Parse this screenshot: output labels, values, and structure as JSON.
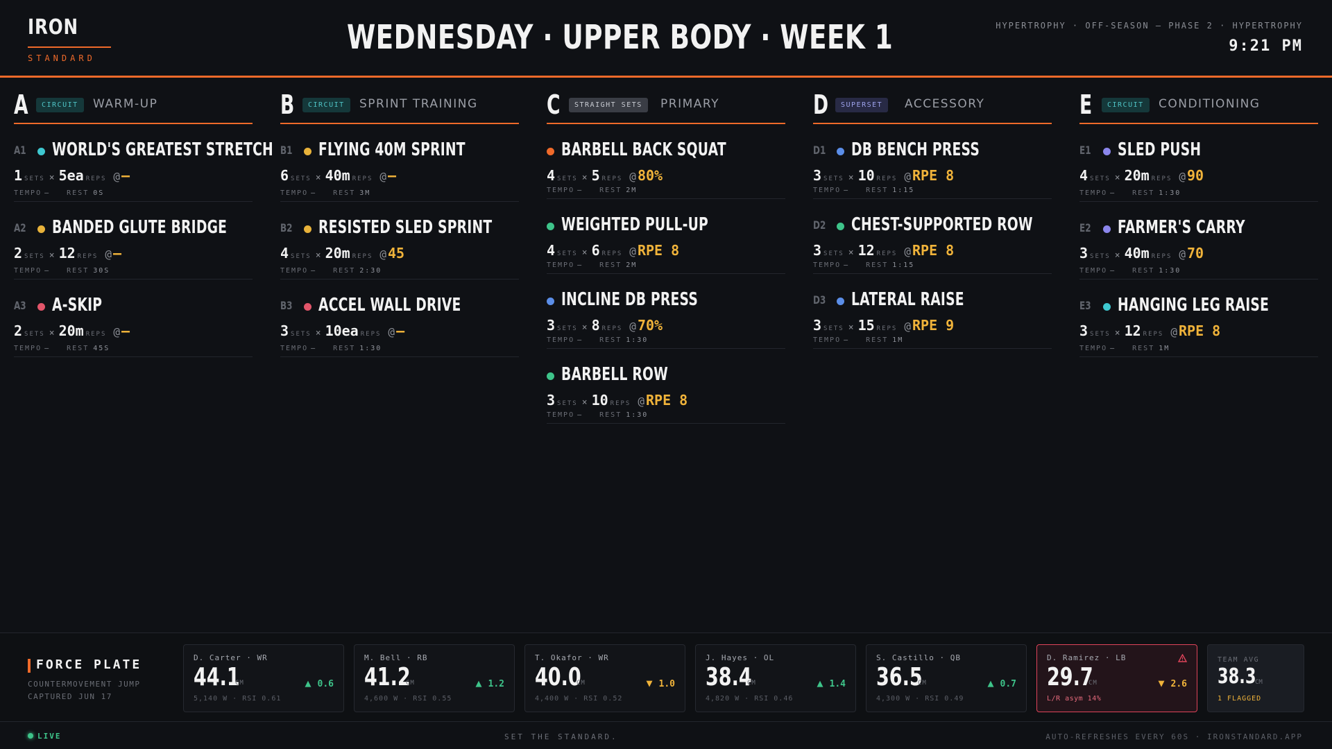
{
  "header": {
    "logo_main": "IRON",
    "logo_sub": "STANDARD",
    "title": "WEDNESDAY · UPPER BODY · WEEK 1",
    "meta": "HYPERTROPHY · OFF-SEASON — PHASE 2 · HYPERTROPHY",
    "time": "9:21 PM"
  },
  "labels": {
    "sets": "SETS",
    "reps": "REPS",
    "times": "×",
    "at": "@",
    "tempo": "TEMPO",
    "rest": "REST"
  },
  "colors": {
    "accent": "#ef6a2a",
    "load": "#f0b33a",
    "up": "#3ec48a",
    "flag": "#e0445a"
  },
  "blocks": [
    {
      "letter": "A",
      "badge": "CIRCUIT",
      "title": "WARM-UP",
      "exercises": [
        {
          "code": "A1",
          "dot": "#3ec8d0",
          "name": "WORLD'S GREATEST STRETCH",
          "sets": "1",
          "reps": "5ea",
          "load": "—",
          "tempo": "—",
          "rest": "0S"
        },
        {
          "code": "A2",
          "dot": "#e8b23a",
          "name": "BANDED GLUTE BRIDGE",
          "sets": "2",
          "reps": "12",
          "load": "—",
          "tempo": "—",
          "rest": "30S"
        },
        {
          "code": "A3",
          "dot": "#e2556a",
          "name": "A-SKIP",
          "sets": "2",
          "reps": "20m",
          "load": "—",
          "tempo": "—",
          "rest": "45S"
        }
      ]
    },
    {
      "letter": "B",
      "badge": "CIRCUIT",
      "title": "SPRINT TRAINING",
      "exercises": [
        {
          "code": "B1",
          "dot": "#e8b23a",
          "name": "FLYING 40M SPRINT",
          "sets": "6",
          "reps": "40m",
          "load": "—",
          "tempo": "—",
          "rest": "3M"
        },
        {
          "code": "B2",
          "dot": "#e8b23a",
          "name": "RESISTED SLED SPRINT",
          "sets": "4",
          "reps": "20m",
          "load": "45",
          "tempo": "—",
          "rest": "2:30"
        },
        {
          "code": "B3",
          "dot": "#e2556a",
          "name": "ACCEL WALL DRIVE",
          "sets": "3",
          "reps": "10ea",
          "load": "—",
          "tempo": "—",
          "rest": "1:30"
        }
      ]
    },
    {
      "letter": "C",
      "badge": "STRAIGHT SETS",
      "title": "PRIMARY",
      "exercises": [
        {
          "code": "",
          "dot": "#ef6a2a",
          "name": "BARBELL BACK SQUAT",
          "sets": "4",
          "reps": "5",
          "load": "80%",
          "tempo": "—",
          "rest": "2M"
        },
        {
          "code": "",
          "dot": "#3ec48a",
          "name": "WEIGHTED PULL-UP",
          "sets": "4",
          "reps": "6",
          "load": "RPE 8",
          "tempo": "—",
          "rest": "2M"
        },
        {
          "code": "",
          "dot": "#5b8ee8",
          "name": "INCLINE DB PRESS",
          "sets": "3",
          "reps": "8",
          "load": "70%",
          "tempo": "—",
          "rest": "1:30"
        },
        {
          "code": "",
          "dot": "#3ec48a",
          "name": "BARBELL ROW",
          "sets": "3",
          "reps": "10",
          "load": "RPE 8",
          "tempo": "—",
          "rest": "1:30"
        }
      ]
    },
    {
      "letter": "D",
      "badge": "SUPERSET",
      "title": "ACCESSORY",
      "exercises": [
        {
          "code": "D1",
          "dot": "#5b8ee8",
          "name": "DB BENCH PRESS",
          "sets": "3",
          "reps": "10",
          "load": "RPE 8",
          "tempo": "—",
          "rest": "1:15"
        },
        {
          "code": "D2",
          "dot": "#3ec48a",
          "name": "CHEST-SUPPORTED ROW",
          "sets": "3",
          "reps": "12",
          "load": "RPE 8",
          "tempo": "—",
          "rest": "1:15"
        },
        {
          "code": "D3",
          "dot": "#5b8ee8",
          "name": "LATERAL RAISE",
          "sets": "3",
          "reps": "15",
          "load": "RPE 9",
          "tempo": "—",
          "rest": "1M"
        }
      ]
    },
    {
      "letter": "E",
      "badge": "CIRCUIT",
      "title": "CONDITIONING",
      "exercises": [
        {
          "code": "E1",
          "dot": "#8b86ec",
          "name": "SLED PUSH",
          "sets": "4",
          "reps": "20m",
          "load": "90",
          "tempo": "—",
          "rest": "1:30"
        },
        {
          "code": "E2",
          "dot": "#8b86ec",
          "name": "FARMER'S CARRY",
          "sets": "3",
          "reps": "40m",
          "load": "70",
          "tempo": "—",
          "rest": "1:30"
        },
        {
          "code": "E3",
          "dot": "#3ec8d0",
          "name": "HANGING LEG RAISE",
          "sets": "3",
          "reps": "12",
          "load": "RPE 8",
          "tempo": "—",
          "rest": "1M"
        }
      ]
    }
  ],
  "force_plate": {
    "title": "FORCE PLATE",
    "subtitle": "COUNTERMOVEMENT JUMP",
    "captured": "CAPTURED JUN 17",
    "unit": "CM",
    "athletes": [
      {
        "name": "D. Carter · WR",
        "value": "44.1",
        "dir": "up",
        "delta": "0.6",
        "meta": "5,140 W · RSI 0.61"
      },
      {
        "name": "M. Bell · RB",
        "value": "41.2",
        "dir": "up",
        "delta": "1.2",
        "meta": "4,600 W · RSI 0.55"
      },
      {
        "name": "T. Okafor · WR",
        "value": "40.0",
        "dir": "down",
        "delta": "1.0",
        "meta": "4,400 W · RSI 0.52"
      },
      {
        "name": "J. Hayes · OL",
        "value": "38.4",
        "dir": "up",
        "delta": "1.4",
        "meta": "4,820 W · RSI 0.46"
      },
      {
        "name": "S. Castillo · QB",
        "value": "36.5",
        "dir": "up",
        "delta": "0.7",
        "meta": "4,300 W · RSI 0.49"
      },
      {
        "name": "D. Ramirez · LB",
        "value": "29.7",
        "dir": "down",
        "delta": "2.6",
        "meta": "L/R asym 14%",
        "flagged": true
      }
    ],
    "team_avg_label": "TEAM AVG",
    "team_avg": "38.3",
    "flagged_count": "1 FLAGGED"
  },
  "footer": {
    "live": "LIVE",
    "tagline": "SET THE STANDARD.",
    "autorefresh": "AUTO-REFRESHES EVERY 60S · IRONSTANDARD.APP"
  }
}
